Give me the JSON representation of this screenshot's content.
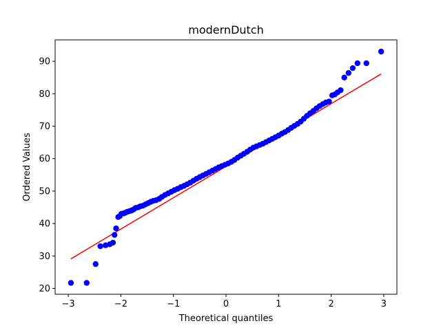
{
  "chart_data": {
    "type": "scatter",
    "title": "modernDutch",
    "xlabel": "Theoretical quantiles",
    "ylabel": "Ordered Values",
    "xlim": [
      -3.25,
      3.25
    ],
    "ylim": [
      18.2,
      96.6
    ],
    "xticks": [
      -3,
      -2,
      -1,
      0,
      1,
      2,
      3
    ],
    "yticks": [
      20,
      30,
      40,
      50,
      60,
      70,
      80,
      90
    ],
    "grid": false,
    "colors": {
      "points": "#0000ff",
      "fit_line": "#ff0000"
    },
    "fit_line": {
      "slope": 9.65,
      "intercept": 57.6,
      "x": [
        -2.95,
        2.95
      ],
      "y": [
        29.1,
        86.1
      ]
    },
    "series": [
      {
        "points": {
          "x": [
            -2.95,
            -2.65,
            -2.48,
            -2.39,
            -2.29,
            -2.21,
            -2.15,
            -2.12,
            -2.09,
            -2.05,
            -2.02,
            -1.99,
            -1.95,
            -1.92,
            -1.88,
            -1.84,
            -1.8,
            -1.76,
            -1.72,
            -1.67,
            -1.63,
            -1.58,
            -1.53,
            -1.48,
            -1.43,
            -1.38,
            -1.33,
            -1.27,
            -1.22,
            -1.16,
            -1.1,
            -1.04,
            -0.98,
            -0.92,
            -0.86,
            -0.8,
            -0.74,
            -0.68,
            -0.62,
            -0.56,
            -0.5,
            -0.44,
            -0.38,
            -0.32,
            -0.26,
            -0.2,
            -0.14,
            -0.08,
            -0.02,
            0.04,
            0.1,
            0.16,
            0.22,
            0.28,
            0.34,
            0.4,
            0.46,
            0.52,
            0.58,
            0.64,
            0.7,
            0.76,
            0.82,
            0.88,
            0.94,
            1.0,
            1.06,
            1.12,
            1.18,
            1.24,
            1.3,
            1.36,
            1.42,
            1.48,
            1.54,
            1.6,
            1.66,
            1.72,
            1.78,
            1.84,
            1.9,
            1.96,
            2.02,
            2.07,
            2.12,
            2.18,
            2.25,
            2.33,
            2.41,
            2.5,
            2.67,
            2.95
          ],
          "y": [
            21.7,
            21.7,
            27.5,
            33.0,
            33.3,
            33.6,
            34.1,
            36.5,
            38.5,
            42.0,
            42.3,
            43.0,
            43.1,
            43.3,
            43.6,
            43.8,
            44.0,
            44.3,
            44.8,
            45.0,
            45.3,
            45.5,
            45.9,
            46.3,
            46.7,
            47.0,
            47.2,
            47.6,
            48.2,
            48.8,
            49.3,
            49.8,
            50.3,
            50.7,
            51.2,
            51.6,
            52.1,
            52.6,
            53.2,
            53.8,
            54.3,
            54.8,
            55.3,
            55.8,
            56.3,
            56.8,
            57.3,
            57.7,
            58.1,
            58.5,
            59.0,
            59.6,
            60.3,
            60.9,
            61.5,
            62.1,
            62.8,
            63.4,
            63.8,
            64.2,
            64.6,
            65.1,
            65.6,
            66.1,
            66.6,
            67.1,
            67.7,
            68.2,
            68.8,
            69.5,
            70.1,
            70.7,
            71.4,
            72.3,
            73.2,
            74.0,
            74.7,
            75.5,
            76.2,
            76.8,
            77.3,
            77.6,
            79.5,
            79.8,
            80.4,
            81.1,
            85.0,
            86.4,
            87.9,
            89.4,
            89.4,
            93.0
          ]
        }
      }
    ]
  }
}
